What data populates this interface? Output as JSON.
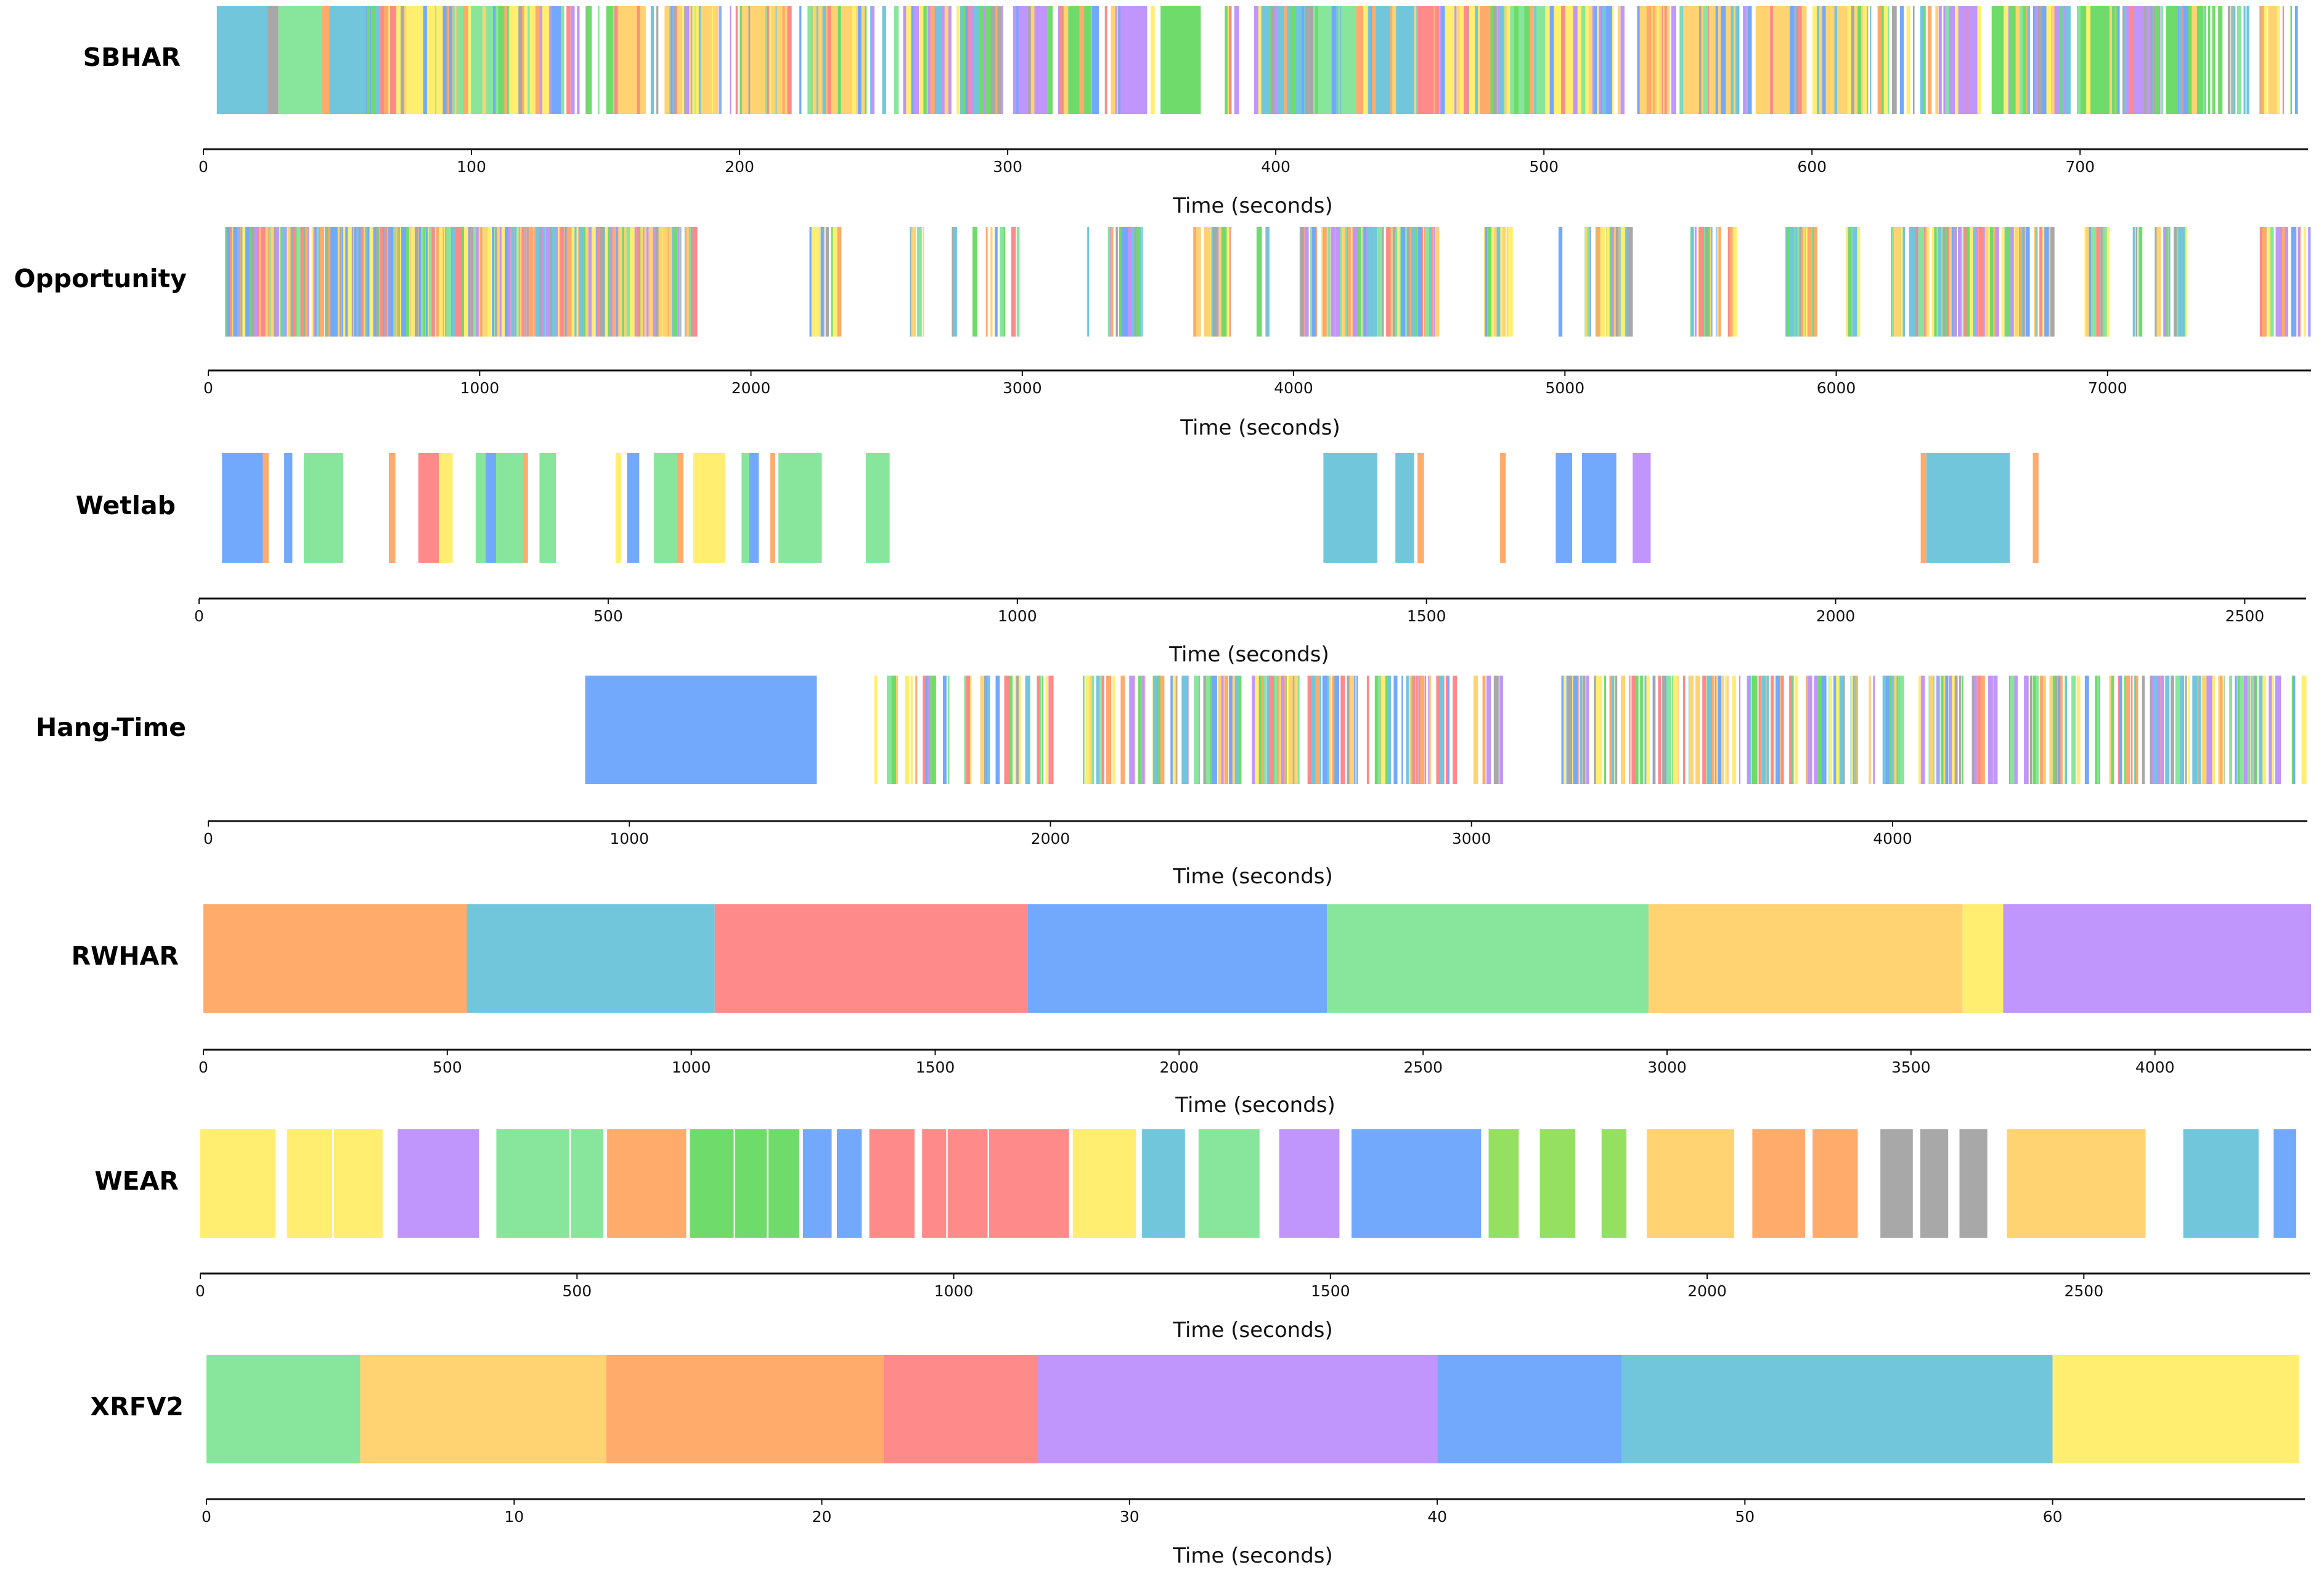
{
  "palette": {
    "orange": "#FFAB6B",
    "cyan": "#72C6DC",
    "red": "#FF8A8A",
    "blue": "#73A9FC",
    "green": "#87E69C",
    "gold": "#FFD272",
    "yellow": "#FFEE70",
    "purple": "#C095FC",
    "darkgreen": "#6FDB6B",
    "lime": "#95E060",
    "gray": "#A8A8A8"
  },
  "chart_data": [
    {
      "type": "timeline",
      "dataset": "SBHAR",
      "xlabel": "Time (seconds)",
      "xlim": [
        0,
        785
      ],
      "ticks": [
        0,
        100,
        200,
        300,
        400,
        500,
        600,
        700
      ],
      "segments": [
        [
          5,
          24,
          "cyan"
        ],
        [
          24,
          28,
          "gray"
        ],
        [
          28,
          44,
          "green"
        ],
        [
          44,
          47,
          "orange"
        ],
        [
          47,
          66,
          "cyan"
        ],
        [
          66,
          72,
          "red"
        ],
        [
          72,
          89,
          "yellow"
        ],
        [
          89,
          93,
          "orange"
        ],
        [
          93,
          110,
          "green"
        ],
        [
          110,
          114,
          "darkgreen"
        ],
        [
          114,
          129,
          "yellow"
        ],
        [
          129,
          134,
          "blue"
        ],
        [
          152,
          165,
          "gold"
        ],
        [
          172,
          192,
          "gold"
        ],
        [
          200,
          219,
          "gold"
        ],
        [
          227,
          247,
          "gold"
        ],
        [
          261,
          267,
          "purple"
        ],
        [
          270,
          279,
          "purple"
        ],
        [
          283,
          296,
          "darkgreen"
        ],
        [
          302,
          315,
          "purple"
        ],
        [
          320,
          334,
          "darkgreen"
        ],
        [
          339,
          352,
          "purple"
        ],
        [
          357,
          372,
          "darkgreen"
        ],
        [
          392,
          411,
          "cyan"
        ],
        [
          411,
          414,
          "gray"
        ],
        [
          414,
          430,
          "green"
        ],
        [
          430,
          433,
          "orange"
        ],
        [
          433,
          453,
          "cyan"
        ],
        [
          453,
          459,
          "red"
        ],
        [
          459,
          476,
          "yellow"
        ],
        [
          476,
          481,
          "orange"
        ],
        [
          481,
          500,
          "green"
        ],
        [
          500,
          503,
          "darkgreen"
        ],
        [
          503,
          521,
          "yellow"
        ],
        [
          521,
          525,
          "blue"
        ],
        [
          535,
          547,
          "gold"
        ],
        [
          553,
          572,
          "gold"
        ],
        [
          579,
          598,
          "gold"
        ],
        [
          601,
          621,
          "gold"
        ],
        [
          649,
          663,
          "purple"
        ],
        [
          667,
          680,
          "darkgreen"
        ],
        [
          683,
          696,
          "purple"
        ],
        [
          700,
          714,
          "darkgreen"
        ],
        [
          716,
          730,
          "purple"
        ],
        [
          732,
          747,
          "darkgreen"
        ]
      ],
      "dense": [
        [
          60,
          360,
          150,
          101
        ],
        [
          380,
          1790,
          650,
          102
        ],
        [
          2200,
          2320,
          16,
          103
        ],
        [
          2570,
          2640,
          7,
          104
        ],
        [
          2730,
          2770,
          2,
          105
        ],
        [
          2810,
          2830,
          1,
          106
        ],
        [
          2860,
          2980,
          8,
          107
        ],
        [
          3230,
          3260,
          2,
          108
        ],
        [
          3300,
          3440,
          20,
          109
        ],
        [
          3630,
          3760,
          30,
          110
        ],
        [
          3840,
          3920,
          6,
          111
        ],
        [
          4020,
          4530,
          110,
          112
        ],
        [
          4700,
          4790,
          14,
          113
        ],
        [
          4970,
          4990,
          1,
          114
        ],
        [
          5070,
          5240,
          36,
          115
        ],
        [
          5460,
          5620,
          24,
          116
        ],
        [
          5810,
          5920,
          24,
          117
        ],
        [
          6030,
          6090,
          8,
          118
        ],
        [
          6200,
          6790,
          120,
          119
        ],
        [
          6910,
          7000,
          18,
          120
        ],
        [
          7080,
          7120,
          3,
          121
        ],
        [
          7170,
          7280,
          18,
          122
        ],
        [
          7550,
          7760,
          24,
          123
        ]
      ]
    },
    {
      "type": "timeline",
      "dataset": "Opportunity",
      "xlabel": "Time (seconds)",
      "xlim": [
        0,
        7750
      ],
      "ticks": [
        0,
        1000,
        2000,
        3000,
        4000,
        5000,
        6000,
        7000
      ],
      "segments": [],
      "dense": [
        [
          60,
          360,
          150,
          201
        ],
        [
          380,
          1790,
          650,
          202
        ],
        [
          2200,
          2320,
          16,
          203
        ],
        [
          2570,
          2640,
          7,
          204
        ],
        [
          2730,
          2770,
          2,
          205
        ],
        [
          2810,
          2830,
          1,
          206
        ],
        [
          2860,
          2980,
          8,
          207
        ],
        [
          3230,
          3260,
          2,
          208
        ],
        [
          3300,
          3440,
          20,
          209
        ],
        [
          3630,
          3760,
          30,
          210
        ],
        [
          3840,
          3920,
          6,
          211
        ],
        [
          4020,
          4530,
          110,
          212
        ],
        [
          4700,
          4790,
          14,
          213
        ],
        [
          4970,
          4990,
          1,
          214
        ],
        [
          5070,
          5240,
          36,
          215
        ],
        [
          5460,
          5620,
          24,
          216
        ],
        [
          5810,
          5920,
          24,
          217
        ],
        [
          6030,
          6090,
          8,
          218
        ],
        [
          6200,
          6790,
          120,
          219
        ],
        [
          6910,
          7000,
          18,
          220
        ],
        [
          7080,
          7120,
          3,
          221
        ],
        [
          7170,
          7280,
          18,
          222
        ],
        [
          7550,
          7760,
          24,
          223
        ]
      ]
    },
    {
      "type": "timeline",
      "dataset": "Wetlab",
      "xlabel": "Time (seconds)",
      "xlim": [
        0,
        2575
      ],
      "ticks": [
        0,
        500,
        1000,
        1500,
        2000,
        2500
      ],
      "segments": [
        [
          28,
          78,
          "blue"
        ],
        [
          78,
          85,
          "orange"
        ],
        [
          104,
          114,
          "blue"
        ],
        [
          128,
          176,
          "green"
        ],
        [
          232,
          240,
          "orange"
        ],
        [
          268,
          293,
          "red"
        ],
        [
          293,
          310,
          "yellow"
        ],
        [
          338,
          350,
          "green"
        ],
        [
          350,
          363,
          "blue"
        ],
        [
          363,
          396,
          "green"
        ],
        [
          396,
          402,
          "orange"
        ],
        [
          416,
          436,
          "green"
        ],
        [
          509,
          516,
          "yellow"
        ],
        [
          523,
          538,
          "blue"
        ],
        [
          556,
          584,
          "green"
        ],
        [
          584,
          592,
          "orange"
        ],
        [
          604,
          643,
          "yellow"
        ],
        [
          663,
          672,
          "green"
        ],
        [
          672,
          684,
          "blue"
        ],
        [
          698,
          704,
          "orange"
        ],
        [
          708,
          761,
          "green"
        ],
        [
          815,
          844,
          "green"
        ],
        [
          1374,
          1440,
          "cyan"
        ],
        [
          1462,
          1485,
          "cyan"
        ],
        [
          1489,
          1497,
          "orange"
        ],
        [
          1590,
          1597,
          "orange"
        ],
        [
          1658,
          1678,
          "blue"
        ],
        [
          1690,
          1732,
          "blue"
        ],
        [
          1752,
          1774,
          "purple"
        ],
        [
          2104,
          2111,
          "orange"
        ],
        [
          2111,
          2213,
          "cyan"
        ],
        [
          2241,
          2248,
          "orange"
        ]
      ],
      "dense": []
    },
    {
      "type": "timeline",
      "dataset": "Hang-Time",
      "xlabel": "Time (seconds)",
      "xlim": [
        0,
        4985
      ],
      "ticks": [
        0,
        1000,
        2000,
        3000,
        4000
      ],
      "segments": [
        [
          895,
          1445,
          "blue"
        ],
        [
          1895,
          1910,
          "darkgreen"
        ],
        [
          1915,
          1930,
          "yellow"
        ],
        [
          1940,
          1952,
          "darkgreen"
        ]
      ],
      "dense": [
        [
          1580,
          2000,
          42,
          401
        ],
        [
          2060,
          2960,
          150,
          402
        ],
        [
          3000,
          3090,
          5,
          403
        ],
        [
          3210,
          4985,
          260,
          404
        ]
      ]
    },
    {
      "type": "timeline",
      "dataset": "RWHAR",
      "xlabel": "Time (seconds)",
      "xlim": [
        0,
        4320
      ],
      "ticks": [
        0,
        500,
        1000,
        1500,
        2000,
        2500,
        3000,
        3500,
        4000
      ],
      "segments": [
        [
          0,
          540,
          "orange"
        ],
        [
          540,
          1048,
          "cyan"
        ],
        [
          1048,
          1690,
          "red"
        ],
        [
          1690,
          2303,
          "blue"
        ],
        [
          2303,
          2962,
          "green"
        ],
        [
          2962,
          3606,
          "gold"
        ],
        [
          3606,
          3689,
          "yellow"
        ],
        [
          3689,
          4320,
          "purple"
        ]
      ],
      "dense": []
    },
    {
      "type": "timeline",
      "dataset": "WEAR",
      "xlabel": "Time (seconds)",
      "xlim": [
        0,
        2800
      ],
      "ticks": [
        0,
        500,
        1000,
        1500,
        2000,
        2500
      ],
      "segments": [
        [
          0,
          100,
          "yellow"
        ],
        [
          115,
          175,
          "yellow"
        ],
        [
          177,
          242,
          "yellow"
        ],
        [
          262,
          370,
          "purple"
        ],
        [
          393,
          490,
          "green"
        ],
        [
          492,
          535,
          "green"
        ],
        [
          540,
          645,
          "orange"
        ],
        [
          650,
          708,
          "darkgreen"
        ],
        [
          710,
          752,
          "darkgreen"
        ],
        [
          754,
          795,
          "darkgreen"
        ],
        [
          800,
          838,
          "blue"
        ],
        [
          845,
          878,
          "blue"
        ],
        [
          888,
          948,
          "red"
        ],
        [
          958,
          990,
          "red"
        ],
        [
          992,
          1045,
          "red"
        ],
        [
          1047,
          1153,
          "red"
        ],
        [
          1158,
          1242,
          "yellow"
        ],
        [
          1250,
          1307,
          "cyan"
        ],
        [
          1325,
          1406,
          "green"
        ],
        [
          1432,
          1512,
          "purple"
        ],
        [
          1528,
          1700,
          "blue"
        ],
        [
          1710,
          1750,
          "lime"
        ],
        [
          1778,
          1825,
          "lime"
        ],
        [
          1860,
          1893,
          "lime"
        ],
        [
          1920,
          2036,
          "gold"
        ],
        [
          2060,
          2130,
          "orange"
        ],
        [
          2140,
          2200,
          "orange"
        ],
        [
          2230,
          2273,
          "gray"
        ],
        [
          2283,
          2320,
          "gray"
        ],
        [
          2335,
          2372,
          "gray"
        ],
        [
          2398,
          2582,
          "gold"
        ],
        [
          2632,
          2732,
          "cyan"
        ],
        [
          2752,
          2782,
          "blue"
        ]
      ],
      "dense": []
    },
    {
      "type": "timeline",
      "dataset": "XRFV2",
      "xlabel": "Time (seconds)",
      "xlim": [
        0,
        68.2
      ],
      "ticks": [
        0,
        10,
        20,
        30,
        40,
        50,
        60
      ],
      "segments": [
        [
          0,
          5,
          "green"
        ],
        [
          5,
          13,
          "gold"
        ],
        [
          13,
          22,
          "orange"
        ],
        [
          22,
          27,
          "red"
        ],
        [
          27,
          40,
          "purple"
        ],
        [
          40,
          46,
          "blue"
        ],
        [
          46,
          60,
          "cyan"
        ],
        [
          60,
          68,
          "yellow"
        ]
      ],
      "dense": []
    }
  ]
}
